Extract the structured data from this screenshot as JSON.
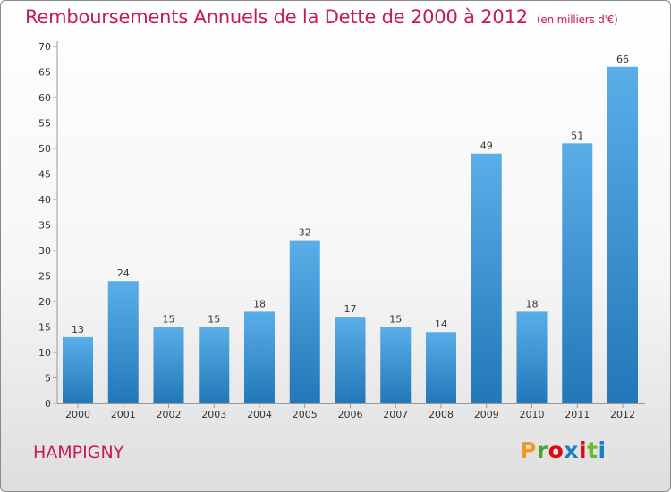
{
  "header": {
    "title": "Remboursements Annuels de la Dette de 2000 à 2012",
    "subtitle": "(en milliers d'€)"
  },
  "footer": {
    "commune": "HAMPIGNY",
    "brand": "Proxiti",
    "brand_colors": [
      "#f29a1f",
      "#3fa535",
      "#e30613",
      "#1a7dc4",
      "#e30613",
      "#6fb92c",
      "#1a7dc4"
    ]
  },
  "chart_data": {
    "type": "bar",
    "title": "Remboursements Annuels de la Dette de 2000 à 2012",
    "subtitle": "(en milliers d'€)",
    "categories": [
      "2000",
      "2001",
      "2002",
      "2003",
      "2004",
      "2005",
      "2006",
      "2007",
      "2008",
      "2009",
      "2010",
      "2011",
      "2012"
    ],
    "values": [
      13,
      24,
      15,
      15,
      18,
      32,
      17,
      15,
      14,
      49,
      18,
      51,
      66
    ],
    "ylim": [
      0,
      70
    ],
    "yticks": [
      0,
      5,
      10,
      15,
      20,
      25,
      30,
      35,
      40,
      45,
      50,
      55,
      60,
      65,
      70
    ],
    "grid": false,
    "bar_color_top": "#5aaee8",
    "bar_color_bottom": "#2277b8"
  }
}
